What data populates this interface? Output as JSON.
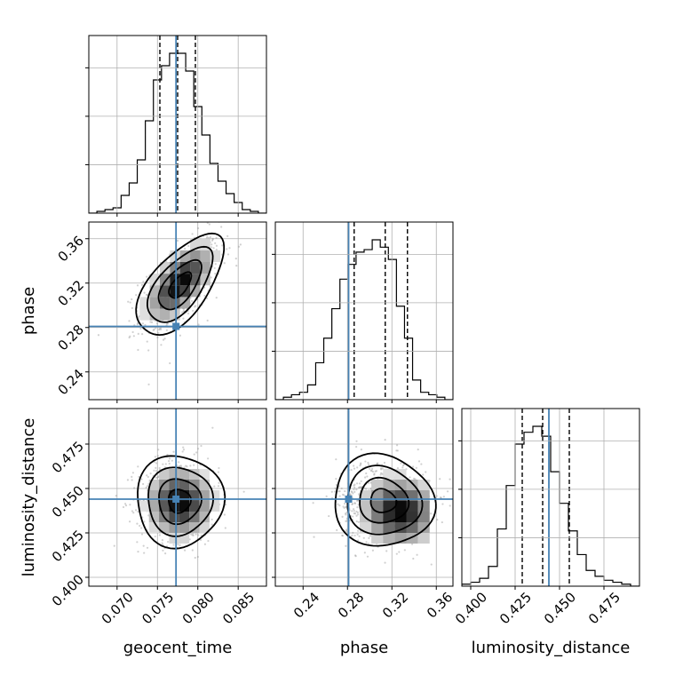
{
  "chart_data": {
    "type": "corner",
    "title": "",
    "truth_color": "#4682b4",
    "parameters": [
      {
        "name": "geocent_time",
        "label": "geocent_time",
        "range": [
          0.0665,
          0.0885
        ],
        "ticks": [
          0.07,
          0.075,
          0.08,
          0.085
        ],
        "tick_labels": [
          "0.070",
          "0.075",
          "0.080",
          "0.085"
        ],
        "truth": 0.0773,
        "quantiles": [
          0.0753,
          0.0775,
          0.0797
        ],
        "hist_values": [
          0,
          1,
          2,
          3,
          10,
          17,
          30,
          52,
          75,
          83,
          90,
          90,
          80,
          60,
          44,
          28,
          18,
          11,
          6,
          2,
          1,
          0
        ]
      },
      {
        "name": "phase",
        "label": "phase",
        "range": [
          0.215,
          0.375
        ],
        "ticks": [
          0.24,
          0.28,
          0.32,
          0.36
        ],
        "tick_labels": [
          "0.24",
          "0.28",
          "0.32",
          "0.36"
        ],
        "truth": 0.281,
        "quantiles": [
          0.286,
          0.314,
          0.334
        ],
        "hist_values": [
          0,
          1,
          2,
          3,
          6,
          15,
          25,
          37,
          49,
          55,
          60,
          61,
          65,
          62,
          57,
          38,
          25,
          8,
          3,
          2,
          1,
          0
        ]
      },
      {
        "name": "luminosity_distance",
        "label": "luminosity_distance",
        "range": [
          0.395,
          0.495
        ],
        "ticks": [
          0.4,
          0.425,
          0.45,
          0.475
        ],
        "tick_labels": [
          "0.400",
          "0.425",
          "0.450",
          "0.475"
        ],
        "truth": 0.444,
        "quantiles": [
          0.429,
          0.4405,
          0.4555
        ],
        "hist_values": [
          1,
          2,
          4,
          10,
          29,
          51,
          72,
          78,
          81,
          76,
          58,
          42,
          28,
          16,
          8,
          5,
          3,
          2,
          1,
          0
        ]
      }
    ],
    "pairs": [
      {
        "x": "geocent_time",
        "y": "phase",
        "mean": [
          0.0778,
          0.318
        ],
        "sd": [
          0.0025,
          0.021
        ],
        "corr": 0.62,
        "density_peak": [
          0.0778,
          0.32
        ]
      },
      {
        "x": "geocent_time",
        "y": "luminosity_distance",
        "mean": [
          0.0777,
          0.443
        ],
        "sd": [
          0.0025,
          0.012
        ],
        "corr": 0.0,
        "density_peak": [
          0.0778,
          0.442
        ]
      },
      {
        "x": "phase",
        "y": "luminosity_distance",
        "mean": [
          0.312,
          0.443
        ],
        "sd": [
          0.021,
          0.012
        ],
        "corr": -0.05,
        "density_peak": [
          0.327,
          0.437
        ]
      }
    ]
  }
}
